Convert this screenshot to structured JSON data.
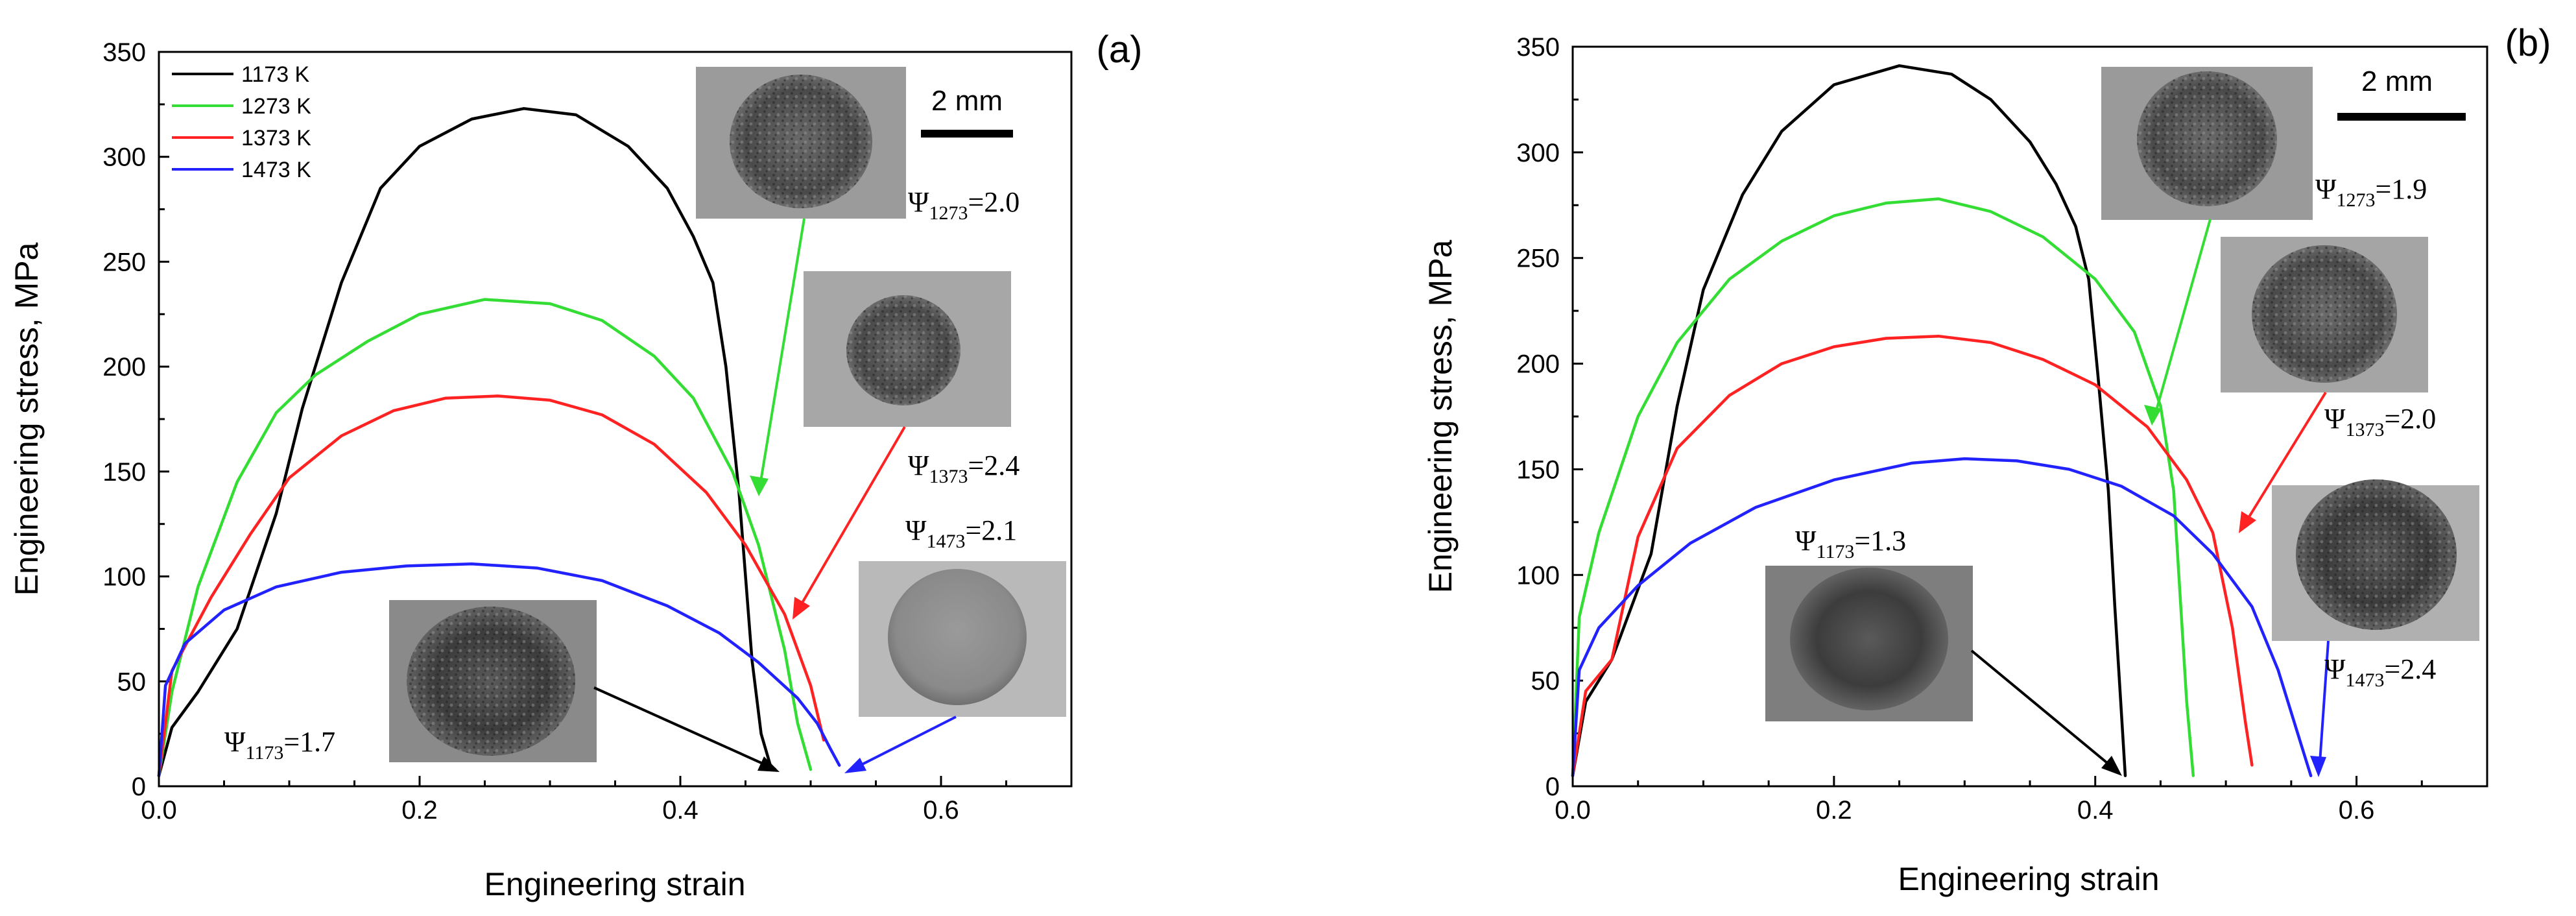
{
  "chart_data": [
    {
      "type": "line",
      "panel_label": "(a)",
      "xlabel": "Engineering strain",
      "ylabel": "Engineering stress, MPa",
      "xlim": [
        0,
        0.7
      ],
      "ylim": [
        0,
        350
      ],
      "x_ticks": [
        "0.0",
        "0.2",
        "0.4",
        "0.6"
      ],
      "y_ticks": [
        "0",
        "50",
        "100",
        "150",
        "200",
        "250",
        "300",
        "350"
      ],
      "legend_position": "top-left",
      "scale_bar": "2 mm",
      "series": [
        {
          "name": "1173 K",
          "color": "#000000",
          "x": [
            0.0,
            0.01,
            0.03,
            0.06,
            0.09,
            0.11,
            0.14,
            0.17,
            0.2,
            0.24,
            0.28,
            0.32,
            0.36,
            0.39,
            0.41,
            0.425,
            0.435,
            0.445,
            0.455,
            0.462,
            0.47
          ],
          "y": [
            5,
            28,
            45,
            75,
            130,
            180,
            240,
            285,
            305,
            318,
            323,
            320,
            305,
            285,
            262,
            240,
            200,
            140,
            60,
            25,
            8
          ]
        },
        {
          "name": "1273 K",
          "color": "#33dd33",
          "x": [
            0.0,
            0.01,
            0.03,
            0.06,
            0.09,
            0.12,
            0.16,
            0.2,
            0.25,
            0.3,
            0.34,
            0.38,
            0.41,
            0.44,
            0.46,
            0.48,
            0.49,
            0.5
          ],
          "y": [
            5,
            45,
            95,
            145,
            178,
            196,
            212,
            225,
            232,
            230,
            222,
            205,
            185,
            150,
            115,
            65,
            30,
            8
          ]
        },
        {
          "name": "1373 K",
          "color": "#ff2222",
          "x": [
            0.0,
            0.01,
            0.04,
            0.07,
            0.1,
            0.14,
            0.18,
            0.22,
            0.26,
            0.3,
            0.34,
            0.38,
            0.42,
            0.45,
            0.48,
            0.5,
            0.51
          ],
          "y": [
            5,
            55,
            90,
            120,
            147,
            167,
            179,
            185,
            186,
            184,
            177,
            163,
            140,
            115,
            82,
            48,
            22
          ]
        },
        {
          "name": "1473 K",
          "color": "#2222ff",
          "x": [
            0.0,
            0.005,
            0.02,
            0.05,
            0.09,
            0.14,
            0.19,
            0.24,
            0.29,
            0.34,
            0.39,
            0.43,
            0.46,
            0.49,
            0.505,
            0.515,
            0.522
          ],
          "y": [
            5,
            48,
            68,
            84,
            95,
            102,
            105,
            106,
            104,
            98,
            86,
            73,
            59,
            42,
            30,
            18,
            10
          ]
        }
      ],
      "annotations": [
        {
          "symbol": "Ψ",
          "subscript": "1273",
          "value": "=2.0"
        },
        {
          "symbol": "Ψ",
          "subscript": "1373",
          "value": "=2.4"
        },
        {
          "symbol": "Ψ",
          "subscript": "1473",
          "value": "=2.1"
        },
        {
          "symbol": "Ψ",
          "subscript": "1173",
          "value": "=1.7"
        }
      ]
    },
    {
      "type": "line",
      "panel_label": "(b)",
      "xlabel": "Engineering strain",
      "ylabel": "Engineering stress, MPa",
      "xlim": [
        0,
        0.7
      ],
      "ylim": [
        0,
        350
      ],
      "x_ticks": [
        "0.0",
        "0.2",
        "0.4",
        "0.6"
      ],
      "y_ticks": [
        "0",
        "50",
        "100",
        "150",
        "200",
        "250",
        "300",
        "350"
      ],
      "scale_bar": "2 mm",
      "series": [
        {
          "name": "1173 K",
          "color": "#000000",
          "x": [
            0.0,
            0.01,
            0.03,
            0.06,
            0.08,
            0.1,
            0.13,
            0.16,
            0.2,
            0.25,
            0.29,
            0.32,
            0.35,
            0.37,
            0.385,
            0.395,
            0.402,
            0.41,
            0.415,
            0.42,
            0.423
          ],
          "y": [
            5,
            40,
            60,
            110,
            180,
            235,
            280,
            310,
            332,
            341,
            337,
            325,
            305,
            285,
            265,
            240,
            195,
            140,
            85,
            35,
            5
          ]
        },
        {
          "name": "1273 K",
          "color": "#33dd33",
          "x": [
            0.0,
            0.005,
            0.02,
            0.05,
            0.08,
            0.12,
            0.16,
            0.2,
            0.24,
            0.28,
            0.32,
            0.36,
            0.4,
            0.43,
            0.45,
            0.46,
            0.465,
            0.47,
            0.475
          ],
          "y": [
            5,
            80,
            120,
            175,
            210,
            240,
            258,
            270,
            276,
            278,
            272,
            260,
            240,
            215,
            180,
            140,
            90,
            40,
            5
          ]
        },
        {
          "name": "1373 K",
          "color": "#ff2222",
          "x": [
            0.0,
            0.01,
            0.03,
            0.05,
            0.08,
            0.12,
            0.16,
            0.2,
            0.24,
            0.28,
            0.32,
            0.36,
            0.4,
            0.44,
            0.47,
            0.49,
            0.505,
            0.515,
            0.52
          ],
          "y": [
            5,
            45,
            60,
            118,
            160,
            185,
            200,
            208,
            212,
            213,
            210,
            202,
            190,
            170,
            145,
            120,
            75,
            30,
            10
          ]
        },
        {
          "name": "1473 K",
          "color": "#2222ff",
          "x": [
            0.0,
            0.005,
            0.02,
            0.05,
            0.09,
            0.14,
            0.2,
            0.26,
            0.3,
            0.34,
            0.38,
            0.42,
            0.46,
            0.49,
            0.52,
            0.54,
            0.555,
            0.565
          ],
          "y": [
            5,
            55,
            75,
            95,
            115,
            132,
            145,
            153,
            155,
            154,
            150,
            142,
            128,
            110,
            85,
            55,
            25,
            5
          ]
        }
      ],
      "annotations": [
        {
          "symbol": "Ψ",
          "subscript": "1273",
          "value": "=1.9"
        },
        {
          "symbol": "Ψ",
          "subscript": "1373",
          "value": "=2.0"
        },
        {
          "symbol": "Ψ",
          "subscript": "1473",
          "value": "=2.4"
        },
        {
          "symbol": "Ψ",
          "subscript": "1173",
          "value": "=1.3"
        }
      ]
    }
  ]
}
